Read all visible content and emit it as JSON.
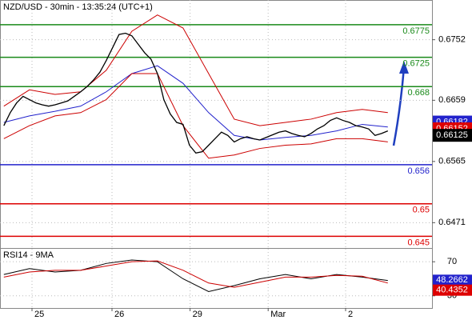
{
  "chart_data": {
    "type": "line",
    "title": "NZD/USD - 30min - 13:35:24 (UTC+1)",
    "xlim": [
      -0.6,
      66.9
    ],
    "xticks": [
      {
        "value": 4.4,
        "label": "25"
      },
      {
        "value": 16.9,
        "label": "26"
      },
      {
        "value": 29.1,
        "label": "29"
      },
      {
        "value": 41.3,
        "label": "Mar"
      },
      {
        "value": 53.4,
        "label": "2"
      }
    ],
    "ylim": [
      0.64321,
      0.6813
    ],
    "yticks": [
      0.6752,
      0.6659,
      0.6565,
      0.6471
    ],
    "grid": true,
    "x": [
      0,
      1,
      2,
      3,
      4,
      5,
      6,
      7,
      8,
      9,
      10,
      11,
      12,
      13,
      14,
      15,
      16,
      17,
      18,
      19,
      20,
      21,
      22,
      23,
      24,
      25,
      26,
      27,
      28,
      29,
      30,
      31,
      32,
      33,
      34,
      35,
      36,
      37,
      38,
      39,
      40,
      41,
      42,
      43,
      44,
      45,
      46,
      47,
      48,
      49,
      50,
      51,
      52,
      53,
      54,
      55,
      56,
      57,
      58,
      59,
      60
    ],
    "values": [
      0.662,
      0.664,
      0.6655,
      0.6665,
      0.666,
      0.6655,
      0.6652,
      0.665,
      0.6652,
      0.6655,
      0.6658,
      0.6665,
      0.6672,
      0.668,
      0.669,
      0.6702,
      0.672,
      0.674,
      0.676,
      0.6762,
      0.6758,
      0.6745,
      0.6732,
      0.6722,
      0.67,
      0.666,
      0.6638,
      0.6625,
      0.6622,
      0.659,
      0.6578,
      0.658,
      0.659,
      0.66,
      0.661,
      0.6605,
      0.6595,
      0.66,
      0.6603,
      0.66,
      0.6598,
      0.6602,
      0.6606,
      0.661,
      0.6612,
      0.6608,
      0.6605,
      0.6603,
      0.6608,
      0.6615,
      0.662,
      0.6628,
      0.6632,
      0.6628,
      0.6625,
      0.662,
      0.6618,
      0.6615,
      0.6605,
      0.6608,
      0.6612
    ],
    "color": "#000000",
    "overlay_x": [
      0,
      4,
      8,
      12,
      16,
      20,
      24,
      28,
      32,
      36,
      40,
      44,
      48,
      52,
      56,
      60
    ],
    "overlays": [
      {
        "color": "#2222cc",
        "values": [
          0.6625,
          0.6635,
          0.6642,
          0.665,
          0.6672,
          0.67,
          0.6712,
          0.6685,
          0.664,
          0.6605,
          0.6598,
          0.6602,
          0.6605,
          0.6612,
          0.6622,
          0.6618
        ]
      },
      {
        "color": "#cc0000",
        "values": [
          0.665,
          0.6675,
          0.6668,
          0.6672,
          0.6705,
          0.6765,
          0.679,
          0.677,
          0.67,
          0.663,
          0.662,
          0.6625,
          0.663,
          0.664,
          0.6645,
          0.664
        ]
      },
      {
        "color": "#cc0000",
        "values": [
          0.66,
          0.662,
          0.6635,
          0.664,
          0.666,
          0.67,
          0.67,
          0.662,
          0.657,
          0.6575,
          0.6585,
          0.659,
          0.6592,
          0.66,
          0.66,
          0.6595
        ]
      }
    ],
    "levels": [
      {
        "value": 0.6775,
        "color": "#1a8a1a"
      },
      {
        "value": 0.6725,
        "color": "#1a8a1a"
      },
      {
        "value": 0.668,
        "color": "#1a8a1a"
      },
      {
        "value": 0.656,
        "color": "#2222cc"
      },
      {
        "value": 0.65,
        "color": "#dd0000"
      },
      {
        "value": 0.645,
        "color": "#dd0000"
      }
    ],
    "price_labels": [
      {
        "value": 0.66182,
        "color": "#2222cc"
      },
      {
        "value": 0.66152,
        "color": "#dd0000"
      },
      {
        "value": 0.66125,
        "color": "#000000"
      }
    ],
    "rsi": {
      "title": "RSI14 - 9MA",
      "ylim": [
        15.7,
        85.2
      ],
      "yticks": [
        70,
        30
      ],
      "series": [
        {
          "color": "#000000",
          "values": [
            55,
            62,
            58,
            60,
            68,
            72,
            70,
            50,
            35,
            42,
            50,
            55,
            50,
            55,
            52,
            48
          ]
        },
        {
          "color": "#cc0000",
          "values": [
            52,
            58,
            60,
            60,
            65,
            70,
            71,
            60,
            45,
            40,
            46,
            52,
            52,
            54,
            53,
            45
          ]
        }
      ],
      "value_boxes": [
        {
          "value": 48.2662,
          "color": "#2222cc"
        },
        {
          "value": 40.4352,
          "color": "#dd0000"
        }
      ]
    }
  }
}
